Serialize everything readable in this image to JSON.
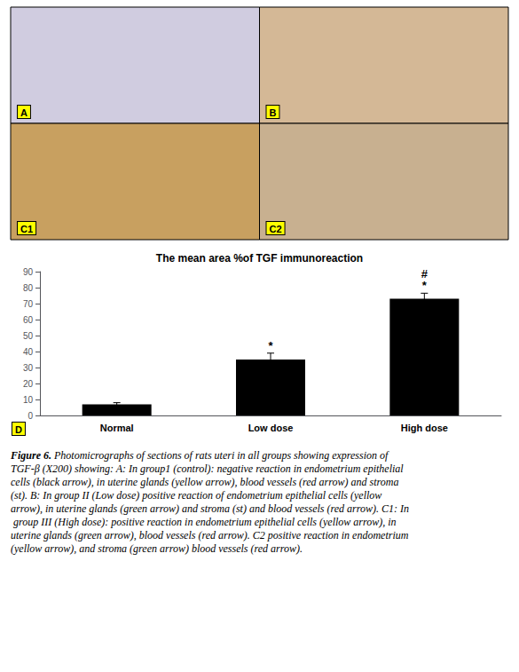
{
  "chart_data": {
    "type": "bar",
    "title": "The mean area %of TGF immunoreaction",
    "categories": [
      "Normal",
      "Low dose",
      "High dose"
    ],
    "values": [
      7,
      35,
      73
    ],
    "errors": [
      1.0,
      4.0,
      3.5
    ],
    "color": "#000000",
    "ylim": [
      0,
      90
    ],
    "yticks": [
      0,
      10,
      20,
      30,
      40,
      50,
      60,
      70,
      80,
      90
    ],
    "grid": false,
    "annotations": [
      {
        "category": "Low dose",
        "text": "*"
      },
      {
        "category": "High dose",
        "text": "*"
      },
      {
        "category": "High dose",
        "text": "#"
      }
    ],
    "image_panel_labels": [
      "A",
      "B",
      "C1",
      "C2"
    ],
    "bar_panel_label": "D",
    "caption_bold": "Figure 6.",
    "caption": " Photomicrographs of sections of rats uteri in all groups showing expression of TGF-β (X200) showing: A: In group1 (control): negative reaction in endometrium epithelial cells (black arrow), in uterine glands (yellow arrow), blood vessels (red arrow) and stroma (st). B: In group II (Low dose) positive reaction of endometrium epithelial cells (yellow arrow), in uterine glands (green arrow) and stroma (st) and blood vessels (red arrow). C1: In group III (High dose): positive reaction in endometrium epithelial cells (yellow arrow), in uterine glands (green arrow), blood vessels (red arrow). C2 positive reaction in endometrium (yellow arrow), and stroma (green arrow) blood vessels (red arrow)."
  }
}
